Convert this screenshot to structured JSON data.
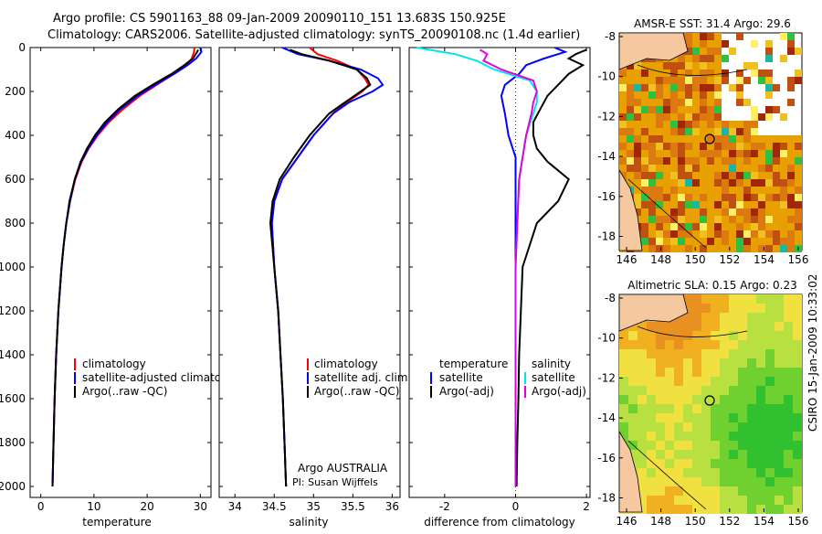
{
  "title_line1": "Argo profile: CS 5901163_88 09-Jan-2009 20090110_151 13.683S 150.925E",
  "title_line2": "Climatology: CARS2006. Satellite-adjusted climatology: synTS_20090108.nc (1.4d earlier)",
  "colors": {
    "clim": "#ff0000",
    "sat": "#0000ff",
    "argo": "#000000",
    "sat_s": "#00e5e5",
    "argo_s": "#e000e0"
  },
  "chart_data": [
    {
      "type": "line",
      "xlabel": "temperature",
      "xlim": [
        -2,
        32
      ],
      "ylim": [
        0,
        2050
      ],
      "yticks": [
        "0",
        "200",
        "400",
        "600",
        "800",
        "1000",
        "1200",
        "1400",
        "1600",
        "1800",
        "2000"
      ],
      "xticks": [
        "0",
        "10",
        "20",
        "30"
      ],
      "legend": [
        "climatology",
        "satellite-adjusted climatology",
        "Argo(..raw -QC)"
      ],
      "series": [
        {
          "name": "climatology",
          "depth": [
            0,
            20,
            50,
            80,
            120,
            170,
            220,
            280,
            340,
            400,
            460,
            520,
            600,
            700,
            800,
            900,
            1000,
            1200,
            1400,
            1600,
            1800,
            2000
          ],
          "values": [
            28.9,
            28.8,
            28.4,
            27.3,
            25.0,
            21.8,
            18.6,
            15.5,
            12.8,
            10.7,
            9.0,
            7.7,
            6.5,
            5.5,
            4.8,
            4.3,
            3.9,
            3.3,
            2.9,
            2.6,
            2.4,
            2.2
          ]
        },
        {
          "name": "satellite-adjusted climatology",
          "depth": [
            0,
            20,
            50,
            80,
            120,
            170,
            220,
            280,
            340,
            400,
            460,
            520,
            600,
            700,
            800,
            900,
            1000,
            1200,
            1400,
            1600,
            1800,
            2000
          ],
          "values": [
            30.0,
            30.2,
            29.2,
            27.6,
            25.1,
            21.5,
            18.2,
            15.0,
            12.5,
            10.5,
            8.9,
            7.6,
            6.4,
            5.5,
            4.8,
            4.3,
            3.9,
            3.3,
            2.9,
            2.6,
            2.4,
            2.2
          ]
        },
        {
          "name": "Argo(..raw -QC)",
          "depth": [
            10,
            20,
            50,
            80,
            120,
            170,
            220,
            280,
            340,
            400,
            460,
            520,
            600,
            700,
            800,
            900,
            1000,
            1200,
            1400,
            1600,
            1800,
            2000
          ],
          "values": [
            29.6,
            29.4,
            28.6,
            27.0,
            24.6,
            21.0,
            17.7,
            14.6,
            12.1,
            10.2,
            8.7,
            7.5,
            6.4,
            5.4,
            4.8,
            4.3,
            3.9,
            3.3,
            2.9,
            2.6,
            2.4,
            2.2
          ]
        }
      ]
    },
    {
      "type": "line",
      "xlabel": "salinity",
      "xlim": [
        33.8,
        36.1
      ],
      "ylim": [
        0,
        2050
      ],
      "xticks": [
        "34",
        "34.5",
        "35",
        "35.5",
        "36"
      ],
      "legend": [
        "climatology",
        "satellite adj. clim.",
        "Argo(..raw -QC)"
      ],
      "footer1": "Argo AUSTRALIA",
      "footer2": "PI: Susan Wijffels",
      "series": [
        {
          "name": "climatology",
          "depth": [
            0,
            30,
            60,
            100,
            140,
            170,
            200,
            250,
            300,
            400,
            500,
            600,
            700,
            800,
            1000,
            1200,
            1400,
            1600,
            1800,
            2000
          ],
          "values": [
            34.95,
            35.05,
            35.3,
            35.55,
            35.65,
            35.7,
            35.62,
            35.42,
            35.25,
            35.0,
            34.8,
            34.6,
            34.5,
            34.47,
            34.5,
            34.55,
            34.58,
            34.61,
            34.63,
            34.65
          ]
        },
        {
          "name": "satellite adj. clim.",
          "depth": [
            0,
            30,
            60,
            100,
            140,
            170,
            200,
            250,
            300,
            400,
            500,
            600,
            700,
            800,
            1000,
            1200,
            1400,
            1600,
            1800,
            2000
          ],
          "values": [
            34.6,
            34.8,
            35.2,
            35.6,
            35.82,
            35.88,
            35.75,
            35.45,
            35.25,
            35.0,
            34.8,
            34.6,
            34.5,
            34.47,
            34.5,
            34.55,
            34.58,
            34.61,
            34.63,
            34.65
          ]
        },
        {
          "name": "Argo(..raw -QC)",
          "depth": [
            10,
            30,
            60,
            100,
            140,
            170,
            200,
            250,
            300,
            400,
            500,
            600,
            700,
            800,
            1000,
            1200,
            1400,
            1600,
            1800,
            2000
          ],
          "values": [
            34.7,
            34.85,
            35.2,
            35.55,
            35.68,
            35.72,
            35.6,
            35.4,
            35.2,
            34.95,
            34.75,
            34.57,
            34.48,
            34.45,
            34.5,
            34.55,
            34.58,
            34.61,
            34.63,
            34.65
          ]
        }
      ]
    },
    {
      "type": "line",
      "xlabel": "difference from climatology",
      "xlim": [
        -3,
        2.1
      ],
      "ylim": [
        0,
        2050
      ],
      "xticks": [
        "-2",
        "0",
        "2"
      ],
      "legend_t_title": "temperature",
      "legend_s_title": "salinity",
      "legend_t": [
        "satellite",
        "Argo(-adj)"
      ],
      "legend_s": [
        "satellite",
        "Argo(-adj)"
      ],
      "series": [
        {
          "name": "temperature satellite",
          "depth": [
            0,
            20,
            50,
            80,
            120,
            170,
            220,
            300,
            400,
            500,
            600,
            800,
            1000,
            1400,
            1800,
            2000
          ],
          "values": [
            1.1,
            1.4,
            0.8,
            0.3,
            0.1,
            -0.3,
            -0.4,
            -0.3,
            -0.2,
            0.0,
            0.0,
            0.0,
            0.0,
            0.0,
            0.0,
            0.0
          ]
        },
        {
          "name": "temperature Argo(-adj)",
          "depth": [
            10,
            30,
            50,
            80,
            120,
            170,
            220,
            280,
            340,
            400,
            460,
            520,
            600,
            700,
            800,
            900,
            1000,
            1200,
            1400,
            1600,
            1800,
            2000
          ],
          "values": [
            2.0,
            1.7,
            1.5,
            1.9,
            1.5,
            1.2,
            0.9,
            0.7,
            0.5,
            0.5,
            0.6,
            0.9,
            1.5,
            1.2,
            0.6,
            0.4,
            0.2,
            0.15,
            0.1,
            0.08,
            0.05,
            0.03
          ]
        },
        {
          "name": "salinity satellite",
          "depth": [
            0,
            30,
            60,
            100,
            150,
            200,
            250,
            300,
            400,
            500,
            600,
            800,
            1000,
            1400,
            1800,
            2000
          ],
          "values": [
            -2.8,
            -1.7,
            -1.1,
            -0.6,
            0.4,
            0.6,
            0.6,
            0.5,
            0.3,
            0.2,
            0.1,
            0.05,
            0.0,
            0.0,
            0.0,
            0.0
          ]
        },
        {
          "name": "salinity Argo(-adj)",
          "depth": [
            10,
            30,
            60,
            100,
            150,
            200,
            250,
            300,
            400,
            500,
            600,
            800,
            1000,
            1400,
            1800,
            2000
          ],
          "values": [
            -1.0,
            -0.8,
            -0.9,
            -0.4,
            0.5,
            0.6,
            0.5,
            0.45,
            0.3,
            0.2,
            0.1,
            0.05,
            0.0,
            0.0,
            0.0,
            0.0
          ]
        }
      ]
    }
  ],
  "maps": {
    "sst_title": "AMSR-E SST: 31.4  Argo: 29.6",
    "sla_title": "Altimetric SLA: 0.15  Argo: 0.23",
    "yticks": [
      "-8",
      "-10",
      "-12",
      "-14",
      "-16",
      "-18"
    ],
    "xticks": [
      "146",
      "148",
      "150",
      "152",
      "154",
      "156"
    ],
    "sst_palette": [
      "#e8a000",
      "#dc7a10",
      "#c05010",
      "#a02808",
      "#f0c020",
      "#ffee66",
      "#30c040",
      "#18b8a0"
    ],
    "sla_palette": [
      "#30c030",
      "#70d030",
      "#b8e040",
      "#f0e040",
      "#f0b020",
      "#e89020"
    ],
    "land": "#f5c8a0"
  },
  "credit": "CSIRO 15-Jan-2009 10:33:02"
}
